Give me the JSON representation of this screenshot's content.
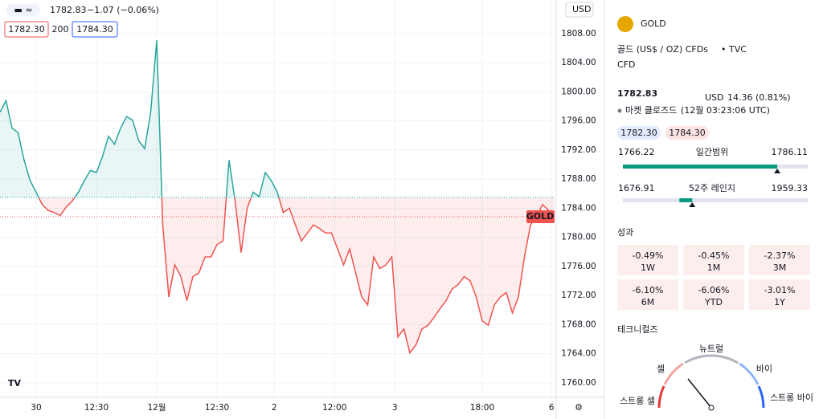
{
  "toolbar": {
    "currency": "USD"
  },
  "legend": {
    "price": "1782.83",
    "change": "−1.07 (−0.06%)",
    "bid": "1782.30",
    "spread": "200",
    "ask": "1784.30"
  },
  "chart": {
    "type": "line",
    "color": "#26a69a",
    "down_color": "#ef5350",
    "baseline": 1785.5,
    "last_label": "GOLD",
    "x": [
      0,
      1,
      2,
      3,
      4,
      5,
      6,
      7,
      8,
      9,
      10,
      11,
      12,
      13,
      14,
      15,
      16,
      17,
      18,
      19,
      20,
      21,
      22,
      23,
      24,
      25,
      26,
      27,
      28,
      29,
      30,
      31,
      32,
      33,
      34,
      35,
      36,
      37,
      38,
      39,
      40,
      41,
      42,
      43,
      44,
      45,
      46,
      47,
      48,
      49,
      50,
      51,
      52,
      53,
      54,
      55,
      56,
      57,
      58,
      59,
      60,
      61,
      62,
      63,
      64,
      65,
      66,
      67,
      68,
      69,
      70,
      71,
      72,
      73,
      74,
      75,
      76,
      77,
      78,
      79,
      80,
      81,
      82,
      83,
      84,
      85,
      86,
      87,
      88,
      89,
      90,
      91,
      92
    ],
    "series": [
      {
        "name": "GOLD",
        "values": [
          1797.2,
          1798.8,
          1795,
          1794.4,
          1790.6,
          1787.8,
          1786.2,
          1784.5,
          1783.7,
          1783.4,
          1783,
          1784.2,
          1785,
          1786.2,
          1787.8,
          1789.2,
          1788.9,
          1791.1,
          1793.9,
          1792.8,
          1795,
          1796.6,
          1796.1,
          1793.3,
          1792.2,
          1797.2,
          1807.1,
          1781.7,
          1771.8,
          1776.2,
          1774.6,
          1771.3,
          1774.6,
          1775.1,
          1777.3,
          1777.3,
          1779,
          1779.5,
          1790.6,
          1785,
          1777.9,
          1784,
          1786.2,
          1785.6,
          1788.9,
          1787.8,
          1786.2,
          1783.4,
          1784,
          1781.7,
          1779.5,
          1780.6,
          1781.7,
          1781.2,
          1780.6,
          1780.6,
          1778.4,
          1776.2,
          1778.4,
          1775.1,
          1771.8,
          1770.7,
          1777.3,
          1775.7,
          1776.2,
          1777.3,
          1766.3,
          1767.4,
          1764.1,
          1765.2,
          1767.4,
          1767.9,
          1769,
          1770.2,
          1771.3,
          1772.9,
          1773.5,
          1774.6,
          1774,
          1771.8,
          1768.5,
          1767.9,
          1770.7,
          1771.8,
          1772.4,
          1769.6,
          1771.8,
          1777.3,
          1781.7,
          1782.8,
          1784.5,
          1783.7,
          1782.8
        ]
      }
    ],
    "xlim": [
      0,
      92
    ],
    "xticks": [
      {
        "value": 6,
        "label": "30"
      },
      {
        "value": 16,
        "label": "12:30"
      },
      {
        "value": 26,
        "label": "12월"
      },
      {
        "value": 36,
        "label": "12:30"
      },
      {
        "value": 45.5,
        "label": "2"
      },
      {
        "value": 55.5,
        "label": "12:00"
      },
      {
        "value": 65.5,
        "label": "3"
      },
      {
        "value": 80,
        "label": "18:00"
      },
      {
        "value": 91.5,
        "label": "6"
      }
    ],
    "ylim": [
      1758,
      1812.63
    ],
    "yticks": [
      {
        "value": 1760,
        "label": "1760.00"
      },
      {
        "value": 1764,
        "label": "1764.00"
      },
      {
        "value": 1768,
        "label": "1768.00"
      },
      {
        "value": 1772,
        "label": "1772.00"
      },
      {
        "value": 1776,
        "label": "1776.00"
      },
      {
        "value": 1780,
        "label": "1780.00"
      },
      {
        "value": 1784,
        "label": "1784.00"
      },
      {
        "value": 1788,
        "label": "1788.00"
      },
      {
        "value": 1792,
        "label": "1792.00"
      },
      {
        "value": 1796,
        "label": "1796.00"
      },
      {
        "value": 1800,
        "label": "1800.00"
      },
      {
        "value": 1804,
        "label": "1804.00"
      },
      {
        "value": 1808,
        "label": "1808.00"
      }
    ],
    "grid": true
  },
  "quote": {
    "symbol": "GOLD",
    "name": "골드 (US$ / OZ) CFDs",
    "exchange": "• TVC",
    "kind": "CFD",
    "price": 1782.83,
    "currency": "USD",
    "change": "14.36 (0.81%)",
    "status": "마켓 클로즈드",
    "time": "(12월 03:23:06 UTC)",
    "bid": "1782.30",
    "ask": "1784.30",
    "day_range": {
      "low": 1766.22,
      "high": 1786.11,
      "label": "일간범위"
    },
    "year_range": {
      "low": 1676.91,
      "high": 1959.33,
      "label": "52주 레인지"
    }
  },
  "performance": {
    "title": "성과",
    "items": [
      {
        "value": "-0.49%",
        "period": "1W"
      },
      {
        "value": "-0.45%",
        "period": "1M"
      },
      {
        "value": "-2.37%",
        "period": "3M"
      },
      {
        "value": "-6.10%",
        "period": "6M"
      },
      {
        "value": "-6.06%",
        "period": "YTD"
      },
      {
        "value": "-3.01%",
        "period": "1Y"
      }
    ]
  },
  "technicals": {
    "title": "테크니컬즈",
    "neutral": "뉴트럴",
    "sell": "셀",
    "buy": "바이",
    "strong_sell": "스트롱 셀",
    "strong_buy": "스트롱 바이"
  }
}
